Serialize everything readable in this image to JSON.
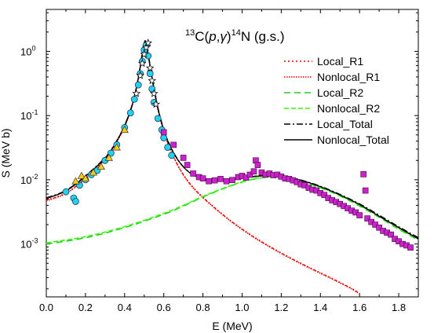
{
  "chart_data": {
    "type": "scatter",
    "title": {
      "mass_a": "13",
      "element_a": "C(",
      "projectile": "p",
      "comma": ",",
      "gamma": "γ",
      "close": ")",
      "mass_b": "14",
      "element_b": "N (g.s.)"
    },
    "xlabel": "E (MeV)",
    "ylabel": "S (MeV b)",
    "xlim": [
      0.0,
      1.9
    ],
    "ylim": [
      0.00015,
      4.5
    ],
    "yscale": "log",
    "grid": false,
    "legend_position": "top-right",
    "x_ticks": [
      "0.0",
      "0.2",
      "0.4",
      "0.6",
      "0.8",
      "1.0",
      "1.2",
      "1.4",
      "1.6",
      "1.8"
    ],
    "y_ticks": [
      {
        "base": "10",
        "exp": "-3"
      },
      {
        "base": "10",
        "exp": "-2"
      },
      {
        "base": "10",
        "exp": "-1"
      },
      {
        "base": "10",
        "exp": "0"
      }
    ],
    "series": [
      {
        "name": "Local_R1",
        "color": "#ff0000",
        "style": "dotted",
        "x": [
          0.0,
          0.1,
          0.2,
          0.3,
          0.35,
          0.4,
          0.44,
          0.47,
          0.49,
          0.505,
          0.52,
          0.55,
          0.58,
          0.62,
          0.68,
          0.75,
          0.85,
          0.95,
          1.05,
          1.15,
          1.25,
          1.35,
          1.45,
          1.55,
          1.6
        ],
        "y": [
          0.0048,
          0.0062,
          0.0105,
          0.021,
          0.035,
          0.068,
          0.15,
          0.38,
          0.9,
          1.45,
          0.9,
          0.26,
          0.095,
          0.038,
          0.0152,
          0.0076,
          0.0039,
          0.0022,
          0.00135,
          0.00088,
          0.0006,
          0.00042,
          0.0003,
          0.00021,
          0.00017
        ]
      },
      {
        "name": "Nonlocal_R1",
        "color": "#e00000",
        "style": "densely-dotted",
        "x": [
          0.0,
          0.1,
          0.2,
          0.3,
          0.35,
          0.4,
          0.44,
          0.47,
          0.49,
          0.505,
          0.52,
          0.55,
          0.58,
          0.62,
          0.68,
          0.75,
          0.85,
          0.95,
          1.05,
          1.15,
          1.25,
          1.35,
          1.45,
          1.55,
          1.6
        ],
        "y": [
          0.0047,
          0.0061,
          0.0104,
          0.0208,
          0.0347,
          0.0675,
          0.149,
          0.378,
          0.895,
          1.44,
          0.895,
          0.258,
          0.094,
          0.0376,
          0.015,
          0.0075,
          0.00385,
          0.00218,
          0.00133,
          0.00087,
          0.00059,
          0.000415,
          0.000295,
          0.000207,
          0.000168
        ]
      },
      {
        "name": "Local_R2",
        "color": "#22cc22",
        "style": "dashed",
        "x": [
          0.0,
          0.2,
          0.4,
          0.6,
          0.7,
          0.8,
          0.9,
          1.0,
          1.08,
          1.15,
          1.2,
          1.3,
          1.4,
          1.5,
          1.6,
          1.7,
          1.8,
          1.9
        ],
        "y": [
          0.001,
          0.00125,
          0.0018,
          0.0029,
          0.0039,
          0.0054,
          0.0072,
          0.0092,
          0.0105,
          0.011,
          0.0108,
          0.0094,
          0.0075,
          0.0056,
          0.0039,
          0.0026,
          0.0017,
          0.00115
        ]
      },
      {
        "name": "Nonlocal_R2",
        "color": "#33ff00",
        "style": "long-dashed",
        "x": [
          0.0,
          0.2,
          0.4,
          0.6,
          0.7,
          0.8,
          0.9,
          1.0,
          1.08,
          1.15,
          1.2,
          1.3,
          1.4,
          1.5,
          1.6,
          1.7,
          1.8,
          1.9
        ],
        "y": [
          0.00104,
          0.0013,
          0.00186,
          0.003,
          0.004,
          0.0055,
          0.0073,
          0.0093,
          0.0106,
          0.0111,
          0.0109,
          0.0095,
          0.0076,
          0.0057,
          0.004,
          0.0027,
          0.00175,
          0.00118
        ]
      },
      {
        "name": "Local_Total",
        "color": "#000000",
        "style": "dash-dot",
        "x": [
          0.0,
          0.1,
          0.2,
          0.3,
          0.35,
          0.4,
          0.44,
          0.47,
          0.49,
          0.505,
          0.52,
          0.55,
          0.58,
          0.62,
          0.68,
          0.75,
          0.85,
          0.95,
          1.05,
          1.12,
          1.2,
          1.3,
          1.4,
          1.5,
          1.6,
          1.7,
          1.8,
          1.9
        ],
        "y": [
          0.0052,
          0.0068,
          0.0115,
          0.022,
          0.036,
          0.07,
          0.152,
          0.385,
          0.905,
          1.46,
          0.905,
          0.262,
          0.098,
          0.041,
          0.019,
          0.012,
          0.0098,
          0.0103,
          0.0112,
          0.0117,
          0.0116,
          0.0099,
          0.0079,
          0.0059,
          0.0042,
          0.0028,
          0.00185,
          0.00125
        ]
      },
      {
        "name": "Nonlocal_Total",
        "color": "#000000",
        "style": "solid",
        "x": [
          0.0,
          0.1,
          0.2,
          0.3,
          0.35,
          0.4,
          0.44,
          0.47,
          0.49,
          0.505,
          0.52,
          0.55,
          0.58,
          0.62,
          0.68,
          0.75,
          0.85,
          0.95,
          1.05,
          1.12,
          1.2,
          1.3,
          1.4,
          1.5,
          1.6,
          1.7,
          1.8,
          1.9
        ],
        "y": [
          0.0051,
          0.0067,
          0.0113,
          0.0218,
          0.0357,
          0.0695,
          0.151,
          0.383,
          0.9,
          1.45,
          0.9,
          0.26,
          0.097,
          0.0405,
          0.0188,
          0.0119,
          0.0097,
          0.0102,
          0.0111,
          0.0116,
          0.0115,
          0.0098,
          0.0078,
          0.0058,
          0.0041,
          0.0027,
          0.0018,
          0.0012
        ]
      }
    ],
    "data_points": [
      {
        "marker": "circle",
        "fill": "#22d3ee",
        "x": [
          0.1,
          0.14,
          0.15,
          0.17,
          0.2,
          0.23,
          0.26,
          0.3,
          0.33,
          0.36,
          0.4,
          0.43,
          0.45,
          0.47,
          0.48,
          0.49,
          0.5,
          0.51,
          0.52,
          0.53,
          0.54,
          0.55,
          0.57,
          0.59,
          0.6,
          0.62,
          0.64
        ],
        "y": [
          0.0065,
          0.0052,
          0.0046,
          0.0082,
          0.01,
          0.012,
          0.014,
          0.02,
          0.026,
          0.035,
          0.065,
          0.11,
          0.18,
          0.3,
          0.45,
          0.7,
          1.05,
          1.25,
          0.85,
          0.45,
          0.26,
          0.16,
          0.09,
          0.06,
          0.045,
          0.032,
          0.024
        ]
      },
      {
        "marker": "triangle",
        "fill": "#facc15",
        "x": [
          0.15,
          0.18,
          0.2,
          0.24,
          0.28,
          0.32,
          0.36,
          0.4
        ],
        "y": [
          0.0095,
          0.0115,
          0.0105,
          0.013,
          0.016,
          0.022,
          0.032,
          0.06
        ]
      },
      {
        "marker": "star",
        "fill": "#ffffff",
        "x": [
          0.46,
          0.48,
          0.49,
          0.5,
          0.51,
          0.52,
          0.53,
          0.54,
          0.55,
          0.56
        ],
        "y": [
          0.22,
          0.42,
          0.65,
          0.9,
          1.15,
          1.35,
          0.55,
          0.35,
          0.22,
          0.15
        ]
      },
      {
        "marker": "square",
        "fill": "#cc22cc",
        "x": [
          0.6,
          0.65,
          0.7,
          0.72,
          0.75,
          0.78,
          0.8,
          0.83,
          0.86,
          0.89,
          0.92,
          0.95,
          0.98,
          1.0,
          1.02,
          1.04,
          1.06,
          1.07,
          1.08,
          1.1,
          1.12,
          1.14,
          1.16,
          1.18,
          1.2,
          1.22,
          1.24,
          1.26,
          1.28,
          1.3,
          1.32,
          1.34,
          1.36,
          1.38,
          1.4,
          1.42,
          1.44,
          1.46,
          1.48,
          1.5,
          1.52,
          1.54,
          1.56,
          1.58,
          1.6,
          1.62,
          1.63,
          1.64,
          1.66,
          1.68,
          1.7,
          1.72,
          1.74,
          1.76,
          1.78,
          1.8,
          1.82,
          1.84,
          1.86
        ],
        "y": [
          0.055,
          0.035,
          0.022,
          0.017,
          0.0125,
          0.011,
          0.0105,
          0.0095,
          0.0098,
          0.0103,
          0.0095,
          0.0099,
          0.011,
          0.0115,
          0.0108,
          0.012,
          0.0135,
          0.02,
          0.017,
          0.013,
          0.012,
          0.0125,
          0.0118,
          0.012,
          0.0112,
          0.0105,
          0.0103,
          0.0098,
          0.0092,
          0.0085,
          0.0082,
          0.0075,
          0.007,
          0.0068,
          0.0062,
          0.0058,
          0.0052,
          0.0048,
          0.0045,
          0.0042,
          0.0039,
          0.0036,
          0.0033,
          0.0031,
          0.0028,
          0.0122,
          0.0068,
          0.0025,
          0.0022,
          0.002,
          0.0018,
          0.0016,
          0.0015,
          0.0014,
          0.0012,
          0.0011,
          0.001,
          0.00095,
          0.00088
        ]
      }
    ]
  }
}
